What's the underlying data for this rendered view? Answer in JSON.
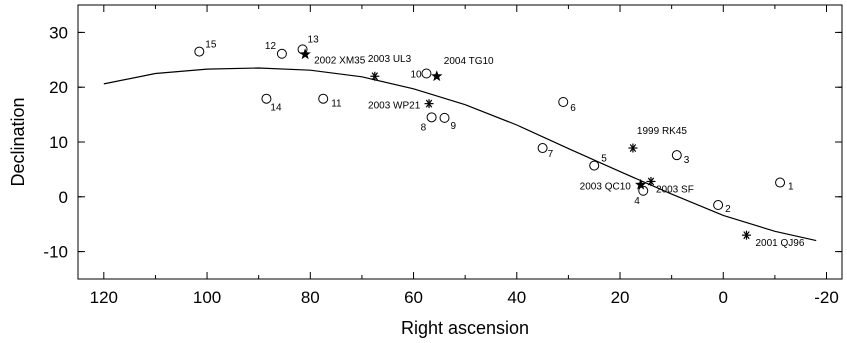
{
  "chart_data": {
    "type": "scatter",
    "xlabel": "Right ascension",
    "ylabel": "Declination",
    "xlim": [
      125,
      -23
    ],
    "ylim": [
      -15,
      35
    ],
    "x_reversed": true,
    "grid": false,
    "x_ticks": [
      120,
      100,
      80,
      60,
      40,
      20,
      0,
      -20
    ],
    "x_tick_labels": [
      "120",
      "100",
      "80",
      "60",
      "40",
      "20",
      "0",
      "-20"
    ],
    "y_ticks": [
      -10,
      0,
      10,
      20,
      30
    ],
    "y_tick_labels": [
      "-10",
      "0",
      "10",
      "20",
      "30"
    ],
    "series": [
      {
        "marker": "circle",
        "points": [
          {
            "label": "1",
            "x": -11,
            "y": 2.6
          },
          {
            "label": "2",
            "x": 1,
            "y": -1.5
          },
          {
            "label": "3",
            "x": 9,
            "y": 7.6
          },
          {
            "label": "4",
            "x": 15.5,
            "y": 1.1
          },
          {
            "label": "5",
            "x": 25,
            "y": 5.7
          },
          {
            "label": "6",
            "x": 31,
            "y": 17.3
          },
          {
            "label": "7",
            "x": 35,
            "y": 8.9
          },
          {
            "label": "8",
            "x": 56.5,
            "y": 14.5
          },
          {
            "label": "9",
            "x": 54,
            "y": 14.4
          },
          {
            "label": "10",
            "x": 57.5,
            "y": 22.5
          },
          {
            "label": "11",
            "x": 77.5,
            "y": 17.9
          },
          {
            "label": "12",
            "x": 85.5,
            "y": 26.1
          },
          {
            "label": "13",
            "x": 81.5,
            "y": 26.9
          },
          {
            "label": "14",
            "x": 88.5,
            "y": 17.9
          },
          {
            "label": "15",
            "x": 101.5,
            "y": 26.5
          }
        ]
      },
      {
        "marker": "asterisk",
        "points": [
          {
            "label": "2003 UL3",
            "x": 67.5,
            "y": 22.0
          },
          {
            "label": "2003 WP21",
            "x": 57,
            "y": 17.0
          },
          {
            "label": "1999 RK45",
            "x": 17.5,
            "y": 8.9
          },
          {
            "label": "2003 SF",
            "x": 14,
            "y": 2.8
          },
          {
            "label": "2001 QJ96",
            "x": -4.5,
            "y": -7.0
          }
        ]
      },
      {
        "marker": "star",
        "points": [
          {
            "label": "2002 XM35",
            "x": 81,
            "y": 26.0
          },
          {
            "label": "2004 TG10",
            "x": 55.5,
            "y": 22.0
          },
          {
            "label": "2003 QC10",
            "x": 16,
            "y": 2.2
          }
        ]
      },
      {
        "type": "line",
        "style": "solid",
        "x": [
          120,
          110,
          100,
          90,
          80,
          70,
          60,
          50,
          40,
          30,
          20,
          10,
          0,
          -10,
          -18
        ],
        "y": [
          20.6,
          22.5,
          23.3,
          23.5,
          23.1,
          21.9,
          19.7,
          16.8,
          13.1,
          8.8,
          4.6,
          0.5,
          -3.4,
          -6.3,
          -8.0
        ]
      }
    ]
  }
}
